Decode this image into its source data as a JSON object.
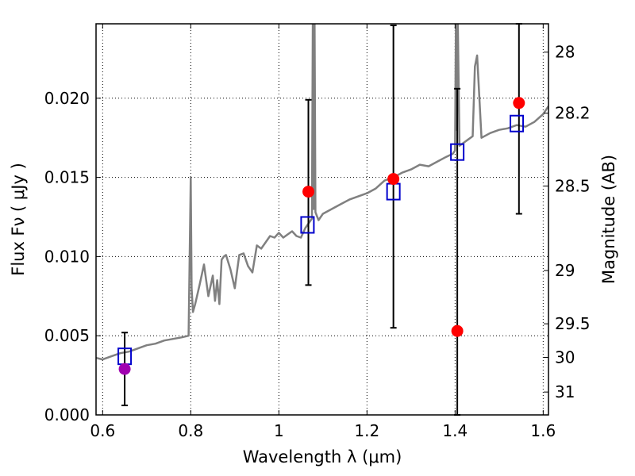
{
  "chart_data": {
    "type": "scatter",
    "xlabel": "Wavelength  λ (μm)",
    "ylabel": "Flux  Fν  ( μJy )",
    "y2label": "Magnitude (AB)",
    "xlim": [
      0.585,
      1.612
    ],
    "ylim": [
      0.0,
      0.0247
    ],
    "grid": true,
    "xticks": [
      0.6,
      0.8,
      1.0,
      1.2,
      1.4,
      1.6
    ],
    "xtick_labels": [
      "0.6",
      "0.8",
      "1",
      "1.2",
      "1.4",
      "1.6"
    ],
    "yticks": [
      0.0,
      0.005,
      0.01,
      0.015,
      0.02
    ],
    "ytick_labels": [
      "0.000",
      "0.005",
      "0.010",
      "0.015",
      "0.020"
    ],
    "mag_ticks": [
      28,
      28.2,
      28.5,
      29,
      29.5,
      30,
      31
    ],
    "mag_tick_labels": [
      "28",
      "28.2",
      "28.5",
      "29",
      "29.5",
      "30",
      "31"
    ],
    "colors": {
      "model": "#808080",
      "observed": "#ff0000",
      "observed_optical": "#a000b0",
      "model_band": "#0000cc",
      "errorbar": "#000000"
    },
    "model_spectrum": {
      "x": [
        0.585,
        0.6,
        0.62,
        0.64,
        0.66,
        0.68,
        0.7,
        0.72,
        0.74,
        0.76,
        0.78,
        0.795,
        0.8,
        0.802,
        0.805,
        0.81,
        0.82,
        0.83,
        0.84,
        0.85,
        0.855,
        0.86,
        0.865,
        0.87,
        0.875,
        0.88,
        0.89,
        0.9,
        0.91,
        0.92,
        0.93,
        0.94,
        0.95,
        0.96,
        0.97,
        0.98,
        0.99,
        1.0,
        1.01,
        1.02,
        1.03,
        1.04,
        1.05,
        1.06,
        1.07,
        1.075,
        1.077,
        1.079,
        1.081,
        1.083,
        1.09,
        1.1,
        1.12,
        1.14,
        1.16,
        1.18,
        1.2,
        1.22,
        1.24,
        1.26,
        1.28,
        1.3,
        1.32,
        1.34,
        1.36,
        1.38,
        1.395,
        1.4,
        1.402,
        1.404,
        1.406,
        1.41,
        1.42,
        1.43,
        1.44,
        1.445,
        1.45,
        1.46,
        1.48,
        1.5,
        1.52,
        1.54,
        1.56,
        1.58,
        1.6,
        1.612
      ],
      "y": [
        0.0036,
        0.0035,
        0.0037,
        0.0039,
        0.004,
        0.0042,
        0.0044,
        0.0045,
        0.0047,
        0.0048,
        0.0049,
        0.005,
        0.015,
        0.008,
        0.0065,
        0.007,
        0.0082,
        0.0095,
        0.0075,
        0.0088,
        0.0072,
        0.0085,
        0.007,
        0.0098,
        0.01,
        0.0101,
        0.0092,
        0.008,
        0.0101,
        0.0102,
        0.0094,
        0.009,
        0.0107,
        0.0105,
        0.0109,
        0.0113,
        0.0112,
        0.0115,
        0.0112,
        0.0114,
        0.0116,
        0.0113,
        0.0112,
        0.0118,
        0.0122,
        0.0124,
        0.025,
        0.013,
        0.025,
        0.0128,
        0.0123,
        0.0127,
        0.013,
        0.0133,
        0.0136,
        0.0138,
        0.014,
        0.0143,
        0.0148,
        0.015,
        0.0153,
        0.0155,
        0.0158,
        0.0157,
        0.016,
        0.0163,
        0.0165,
        0.0167,
        0.025,
        0.018,
        0.025,
        0.017,
        0.0172,
        0.0174,
        0.0176,
        0.022,
        0.0227,
        0.0175,
        0.0178,
        0.018,
        0.0181,
        0.0183,
        0.0182,
        0.0185,
        0.019,
        0.0195
      ]
    },
    "observed_points": [
      {
        "x": 0.65,
        "y": 0.0029,
        "yerr_low": 0.0006,
        "yerr_high": 0.0052,
        "band": "optical"
      },
      {
        "x": 1.067,
        "y": 0.0141,
        "yerr_low": 0.0082,
        "yerr_high": 0.0199,
        "band": "nir"
      },
      {
        "x": 1.26,
        "y": 0.0149,
        "yerr_low": 0.0055,
        "yerr_high": 0.0246,
        "band": "nir"
      },
      {
        "x": 1.405,
        "y": 0.0053,
        "yerr_low": 0.0,
        "yerr_high": 0.0206,
        "band": "nir"
      },
      {
        "x": 1.545,
        "y": 0.0197,
        "yerr_low": 0.0127,
        "yerr_high": 0.0247,
        "band": "nir"
      }
    ],
    "model_band_points": [
      {
        "x": 0.65,
        "y": 0.0037
      },
      {
        "x": 1.065,
        "y": 0.012
      },
      {
        "x": 1.26,
        "y": 0.0141
      },
      {
        "x": 1.405,
        "y": 0.0166
      },
      {
        "x": 1.54,
        "y": 0.0184
      }
    ]
  }
}
